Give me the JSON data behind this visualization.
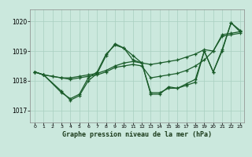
{
  "title": "Graphe pression niveau de la mer (hPa)",
  "bg_color": "#cbe8dd",
  "grid_color": "#a8cfc0",
  "line_color": "#1a5c2a",
  "xlim": [
    -0.5,
    23.5
  ],
  "ylim": [
    1016.6,
    1020.4
  ],
  "yticks": [
    1017,
    1018,
    1019,
    1020
  ],
  "xticks": [
    0,
    1,
    2,
    3,
    4,
    5,
    6,
    7,
    8,
    9,
    10,
    11,
    12,
    13,
    14,
    15,
    16,
    17,
    18,
    19,
    20,
    21,
    22,
    23
  ],
  "series": [
    {
      "x": [
        0,
        1,
        2,
        3,
        4,
        5,
        6,
        7,
        8,
        9,
        10,
        11,
        12,
        13,
        14,
        15,
        16,
        17,
        18,
        19,
        20,
        21,
        22,
        23
      ],
      "y": [
        1018.3,
        1018.2,
        1018.15,
        1018.1,
        1018.1,
        1018.15,
        1018.2,
        1018.25,
        1018.35,
        1018.5,
        1018.6,
        1018.65,
        1018.6,
        1018.55,
        1018.6,
        1018.65,
        1018.7,
        1018.8,
        1018.9,
        1019.05,
        1019.0,
        1019.55,
        1019.6,
        1019.65
      ]
    },
    {
      "x": [
        0,
        1,
        2,
        3,
        4,
        5,
        6,
        7,
        8,
        9,
        10,
        11,
        12,
        13,
        14,
        15,
        16,
        17,
        18,
        19,
        20,
        21,
        22,
        23
      ],
      "y": [
        1018.3,
        1018.2,
        1018.15,
        1018.1,
        1018.05,
        1018.1,
        1018.15,
        1018.2,
        1018.3,
        1018.45,
        1018.5,
        1018.55,
        1018.5,
        1018.1,
        1018.15,
        1018.2,
        1018.25,
        1018.35,
        1018.5,
        1018.7,
        1019.0,
        1019.5,
        1019.55,
        1019.6
      ]
    },
    {
      "x": [
        0,
        1,
        3,
        4,
        5,
        6,
        7,
        8,
        9,
        10,
        11,
        12,
        13,
        14,
        15,
        16,
        17,
        18,
        19,
        20,
        21,
        22,
        23
      ],
      "y": [
        1018.3,
        1018.2,
        1017.65,
        1017.35,
        1017.5,
        1018.0,
        1018.25,
        1018.85,
        1019.25,
        1019.1,
        1018.85,
        1018.6,
        1017.6,
        1017.6,
        1017.75,
        1017.75,
        1017.85,
        1017.95,
        1019.0,
        1018.3,
        1019.05,
        1019.95,
        1019.65
      ]
    },
    {
      "x": [
        0,
        1,
        3,
        4,
        5,
        6,
        7,
        8,
        9,
        10,
        11,
        12,
        13,
        14,
        15,
        16,
        17,
        18,
        19,
        20,
        21,
        22,
        23
      ],
      "y": [
        1018.3,
        1018.2,
        1017.6,
        1017.4,
        1017.55,
        1018.1,
        1018.3,
        1018.9,
        1019.2,
        1019.1,
        1018.7,
        1018.6,
        1017.55,
        1017.55,
        1017.8,
        1017.75,
        1017.9,
        1018.05,
        1019.0,
        1018.3,
        1019.0,
        1019.95,
        1019.7
      ]
    }
  ]
}
